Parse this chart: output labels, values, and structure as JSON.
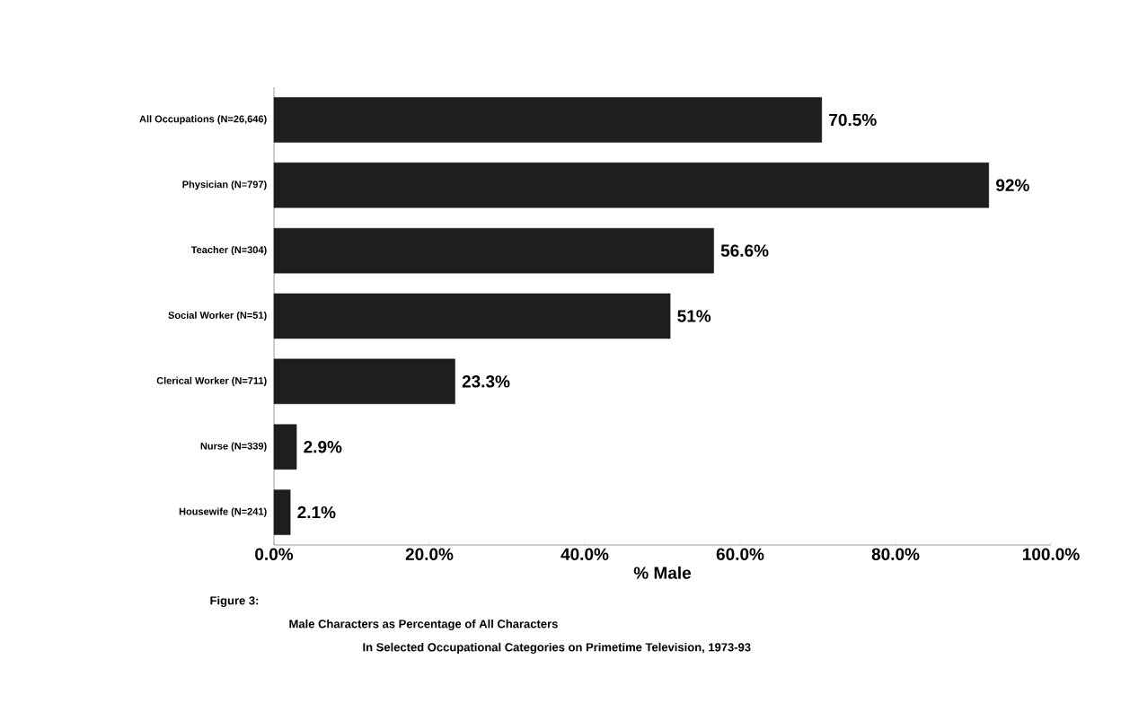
{
  "chart_data": {
    "type": "bar",
    "orientation": "horizontal",
    "xlabel": "% Male",
    "categories": [
      "All Occupations (N=26,646)",
      "Physician (N=797)",
      "Teacher (N=304)",
      "Social Worker (N=51)",
      "Clerical Worker (N=711)",
      "Nurse (N=339)",
      "Housewife (N=241)"
    ],
    "values": [
      70.5,
      92,
      56.6,
      51,
      23.3,
      2.9,
      2.1
    ],
    "value_labels": [
      "70.5%",
      "92%",
      "56.6%",
      "51%",
      "23.3%",
      "2.9%",
      "2.1%"
    ],
    "color": "#1e1e1e",
    "xlim": [
      0,
      100
    ],
    "xticks": [
      {
        "value": 0,
        "label": "0.0%"
      },
      {
        "value": 20,
        "label": "20.0%"
      },
      {
        "value": 40,
        "label": "40.0%"
      },
      {
        "value": 60,
        "label": "60.0%"
      },
      {
        "value": 80,
        "label": "80.0%"
      },
      {
        "value": 100,
        "label": "100.0%"
      }
    ],
    "grid": false,
    "annotations": [
      "Figure 3:",
      "Male Characters as Percentage of All Characters",
      "In Selected Occupational Categories on Primetime Television, 1973-93"
    ]
  }
}
